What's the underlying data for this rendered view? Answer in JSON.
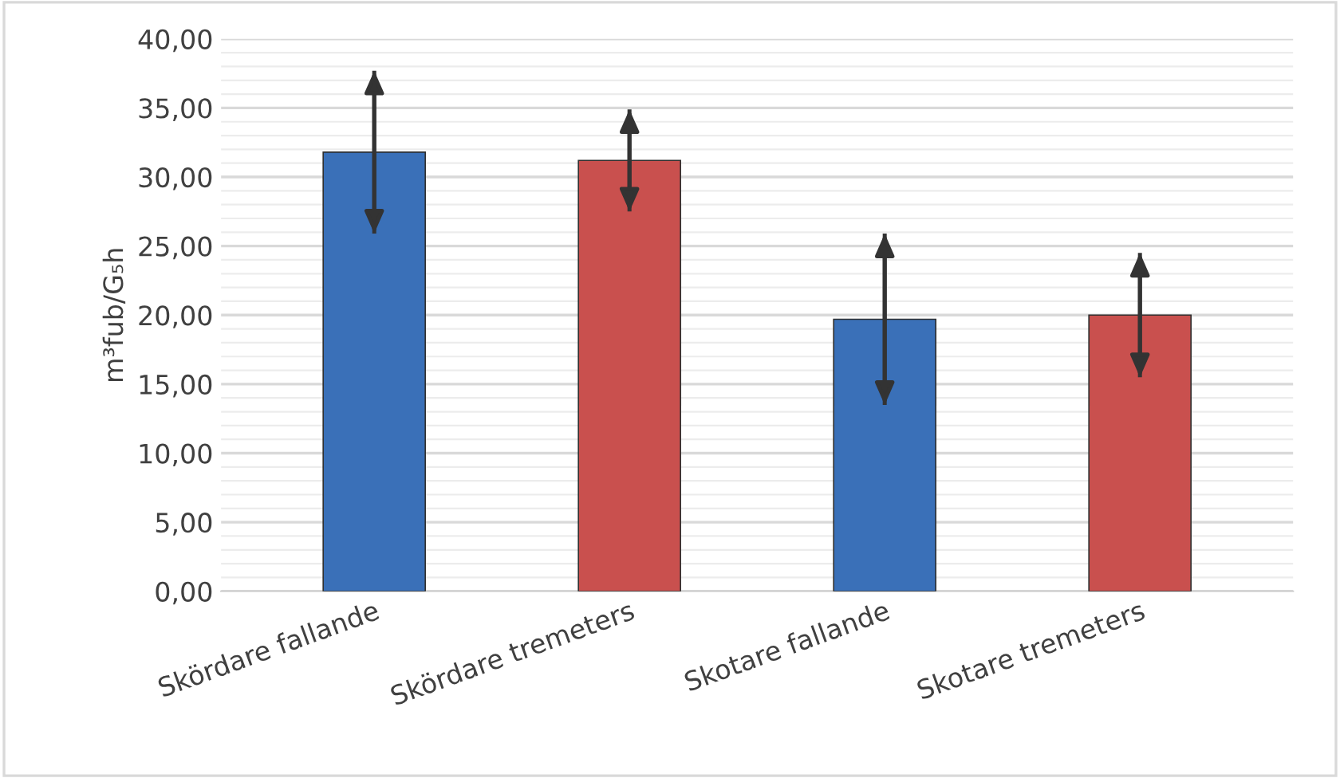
{
  "chart_data": {
    "type": "bar",
    "ylabel": "m³fub/G₅h",
    "categories": [
      "Skördare fallande",
      "Skördare tremeters",
      "Skotare fallande",
      "Skotare tremeters"
    ],
    "values": [
      31.8,
      31.2,
      19.7,
      20.0
    ],
    "colors": [
      "#3a70b8",
      "#c9504e",
      "#3a70b8",
      "#c9504e"
    ],
    "errors": [
      5.9,
      3.7,
      6.2,
      4.5
    ],
    "ylim": [
      0,
      40
    ],
    "yticks": [
      {
        "value": 0,
        "label": "0,00"
      },
      {
        "value": 1,
        "label": null
      },
      {
        "value": 2,
        "label": null
      },
      {
        "value": 3,
        "label": null
      },
      {
        "value": 4,
        "label": null
      },
      {
        "value": 5,
        "label": "5,00"
      },
      {
        "value": 6,
        "label": null
      },
      {
        "value": 7,
        "label": null
      },
      {
        "value": 8,
        "label": null
      },
      {
        "value": 9,
        "label": null
      },
      {
        "value": 10,
        "label": "10,00"
      },
      {
        "value": 11,
        "label": null
      },
      {
        "value": 12,
        "label": null
      },
      {
        "value": 13,
        "label": null
      },
      {
        "value": 14,
        "label": null
      },
      {
        "value": 15,
        "label": "15,00"
      },
      {
        "value": 16,
        "label": null
      },
      {
        "value": 17,
        "label": null
      },
      {
        "value": 18,
        "label": null
      },
      {
        "value": 19,
        "label": null
      },
      {
        "value": 20,
        "label": "20,00"
      },
      {
        "value": 21,
        "label": null
      },
      {
        "value": 22,
        "label": null
      },
      {
        "value": 23,
        "label": null
      },
      {
        "value": 24,
        "label": null
      },
      {
        "value": 25,
        "label": "25,00"
      },
      {
        "value": 26,
        "label": null
      },
      {
        "value": 27,
        "label": null
      },
      {
        "value": 28,
        "label": null
      },
      {
        "value": 29,
        "label": null
      },
      {
        "value": 30,
        "label": "30,00"
      },
      {
        "value": 31,
        "label": null
      },
      {
        "value": 32,
        "label": null
      },
      {
        "value": 33,
        "label": null
      },
      {
        "value": 34,
        "label": null
      },
      {
        "value": 35,
        "label": "35,00"
      },
      {
        "value": 36,
        "label": null
      },
      {
        "value": 37,
        "label": null
      },
      {
        "value": 38,
        "label": null
      },
      {
        "value": 39,
        "label": null
      },
      {
        "value": 40,
        "label": "40,00"
      }
    ],
    "grid": "y"
  }
}
